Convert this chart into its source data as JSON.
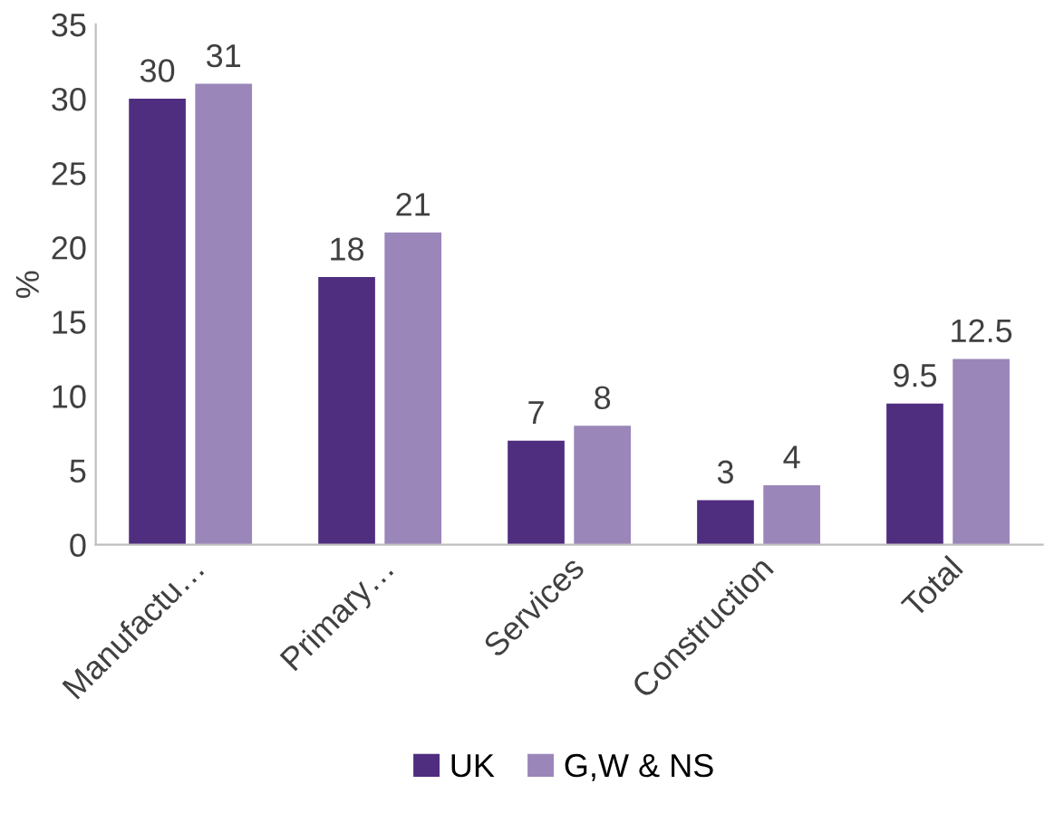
{
  "chart_data": {
    "type": "bar",
    "ylabel": "%",
    "categories": [
      "Manufactu…",
      "Primary…",
      "Services",
      "Construction",
      "Total"
    ],
    "series": [
      {
        "name": "UK",
        "color": "#4f2d7f",
        "values": [
          30,
          18,
          7,
          3,
          9.5
        ]
      },
      {
        "name": "G,W & NS",
        "color": "#9a86b9",
        "values": [
          31,
          21,
          8,
          4,
          12.5
        ]
      }
    ],
    "ylim": [
      0,
      35
    ],
    "yticks": [
      0,
      5,
      10,
      15,
      20,
      25,
      30,
      35
    ],
    "data_labels": true,
    "legend": "bottom"
  }
}
